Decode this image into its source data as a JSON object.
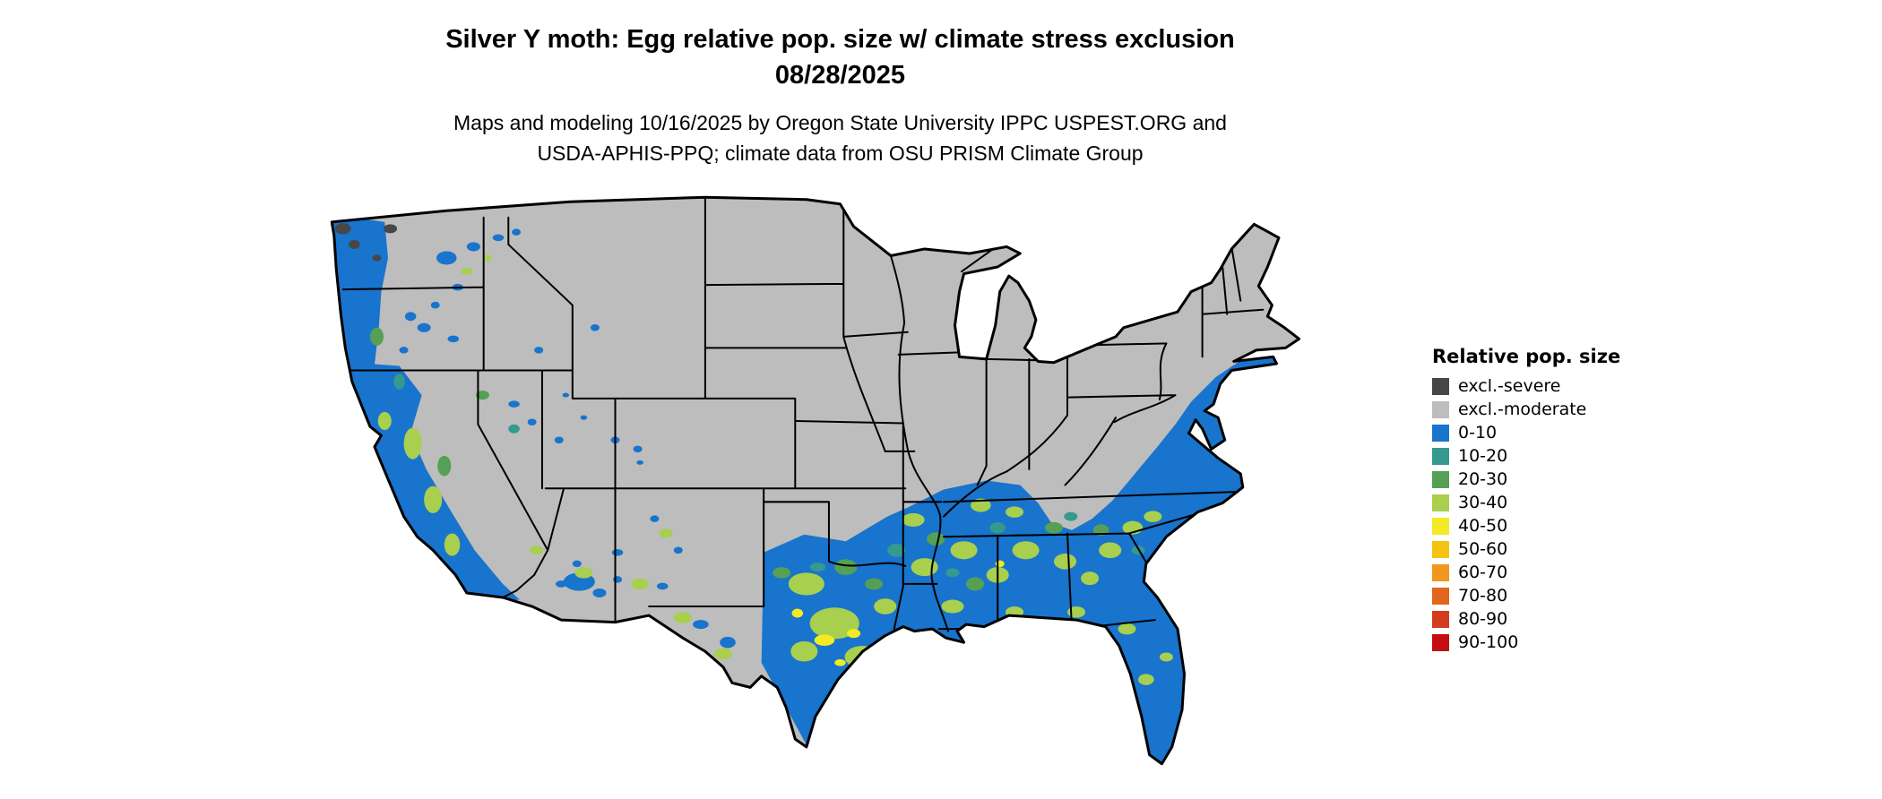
{
  "header": {
    "title_line1": "Silver Y moth: Egg relative pop. size w/ climate stress exclusion",
    "title_line2": "08/28/2025",
    "subtitle_line1": "Maps and modeling 10/16/2025 by Oregon State University IPPC USPEST.ORG and",
    "subtitle_line2": "USDA-APHIS-PPQ; climate data from OSU PRISM Climate Group"
  },
  "legend": {
    "title": "Relative pop. size",
    "items": [
      {
        "label": "excl.-severe",
        "color": "#474747"
      },
      {
        "label": "excl.-moderate",
        "color": "#bdbdbd"
      },
      {
        "label": "0-10",
        "color": "#1874cd"
      },
      {
        "label": "10-20",
        "color": "#35998e"
      },
      {
        "label": "20-30",
        "color": "#55a054"
      },
      {
        "label": "30-40",
        "color": "#a8cf4e"
      },
      {
        "label": "40-50",
        "color": "#f2ea25"
      },
      {
        "label": "50-60",
        "color": "#f6c410"
      },
      {
        "label": "60-70",
        "color": "#f1971d"
      },
      {
        "label": "70-80",
        "color": "#e2661b"
      },
      {
        "label": "80-90",
        "color": "#d33c1d"
      },
      {
        "label": "90-100",
        "color": "#c40f12"
      }
    ]
  },
  "colors": {
    "map_background": "#ffffff",
    "state_border": "#000000"
  }
}
